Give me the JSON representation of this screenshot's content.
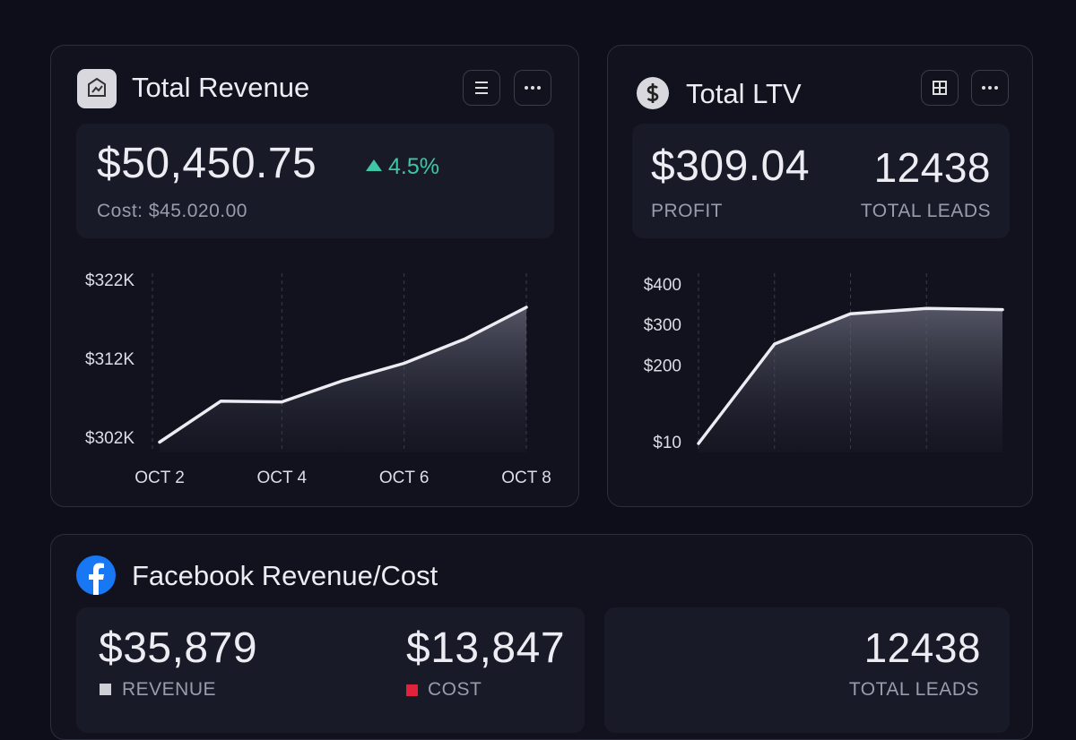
{
  "revenue": {
    "title": "Total Revenue",
    "value": "$50,450.75",
    "change": "4.5%",
    "cost": "Cost: $45.020.00"
  },
  "ltv": {
    "title": "Total LTV",
    "profit": "$309.04",
    "profit_label": "PROFIT",
    "leads": "12438",
    "leads_label": "TOTAL LEADS"
  },
  "facebook": {
    "title": "Facebook Revenue/Cost",
    "revenue": "$35,879",
    "revenue_label": "REVENUE",
    "cost": "$13,847",
    "cost_label": "COST",
    "leads": "12438",
    "leads_label": "TOTAL LEADS"
  },
  "chart_data": [
    {
      "type": "line",
      "color": "#ececf2",
      "xgrid": true,
      "categories": [
        "OCT 2",
        null,
        "OCT 4",
        null,
        "OCT 6",
        null,
        "OCT 8"
      ],
      "values": [
        301600,
        306800,
        306700,
        309400,
        311600,
        314700,
        318700
      ],
      "ylim": [
        301000,
        323000
      ],
      "yticks": [
        {
          "value": 302000,
          "label": "$302K"
        },
        {
          "value": 312000,
          "label": "$312K"
        },
        {
          "value": 322000,
          "label": "$322K"
        }
      ]
    },
    {
      "type": "line",
      "color": "#ececf2",
      "xgrid": true,
      "values": [
        10,
        256,
        331,
        344,
        341
      ],
      "ylim": [
        0,
        420
      ],
      "yticks": [
        {
          "value": 10,
          "label": "$10"
        },
        {
          "value": 200,
          "label": "$200"
        },
        {
          "value": 300,
          "label": "$300"
        },
        {
          "value": 400,
          "label": "$400"
        }
      ]
    }
  ]
}
